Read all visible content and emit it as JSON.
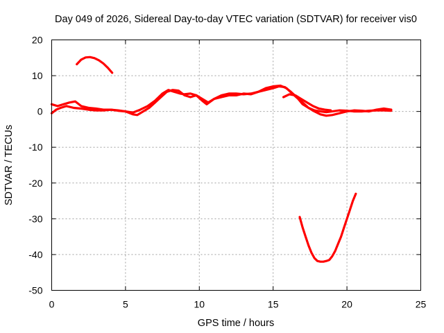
{
  "chart_data": {
    "type": "line",
    "title": "Day 049 of 2026, Sidereal Day-to-day VTEC variation (SDTVAR) for receiver vis0",
    "xlabel": "GPS time / hours",
    "ylabel": "SDTVAR / TECUs",
    "xlim": [
      0,
      25
    ],
    "ylim": [
      -50,
      20
    ],
    "xticks": [
      0,
      5,
      10,
      15,
      20,
      25
    ],
    "yticks": [
      -50,
      -40,
      -30,
      -20,
      -10,
      0,
      10,
      20
    ],
    "grid": true,
    "legend": "none",
    "color": "#ff0000",
    "series": [
      {
        "name": "arc-high-early",
        "x": [
          1.7,
          2.0,
          2.3,
          2.6,
          2.9,
          3.2,
          3.5,
          3.8,
          4.1
        ],
        "y": [
          13.2,
          14.5,
          15.1,
          15.2,
          14.9,
          14.3,
          13.4,
          12.2,
          10.8
        ]
      },
      {
        "name": "arc-baseline-lower",
        "x": [
          0.0,
          0.3,
          0.6,
          1.0,
          1.5,
          2.0,
          2.5,
          3.0,
          3.5,
          4.0,
          4.5,
          5.0,
          5.5,
          6.0,
          6.5,
          7.0,
          7.5,
          7.9,
          8.3,
          8.7,
          9.0,
          9.4,
          9.8,
          10.2,
          10.5,
          11.0,
          11.5,
          12.0,
          12.5,
          13.0,
          13.5,
          14.0,
          14.5,
          15.0,
          15.5,
          15.9,
          16.3,
          16.7,
          17.0,
          17.4,
          17.8,
          18.2,
          18.6,
          19.0,
          19.5,
          20.0,
          20.5,
          21.0,
          21.5,
          22.0,
          22.5,
          23.0
        ],
        "y": [
          -0.5,
          0.5,
          1.0,
          1.5,
          1.0,
          0.8,
          0.5,
          0.3,
          0.3,
          0.5,
          0.2,
          0.0,
          -0.3,
          0.5,
          1.5,
          3.0,
          5.0,
          6.0,
          5.5,
          5.0,
          4.8,
          5.0,
          4.5,
          3.0,
          2.0,
          3.5,
          4.5,
          5.0,
          5.0,
          4.8,
          5.0,
          5.5,
          6.5,
          7.0,
          7.2,
          6.5,
          5.0,
          3.5,
          2.0,
          1.0,
          0.3,
          0.0,
          -0.2,
          0.0,
          0.3,
          0.2,
          0.0,
          0.0,
          0.2,
          0.3,
          0.3,
          0.2
        ]
      },
      {
        "name": "arc-baseline-upper",
        "x": [
          0.0,
          0.4,
          0.8,
          1.2,
          1.6,
          2.0,
          2.5,
          3.0,
          3.5,
          4.0,
          4.5,
          5.0,
          5.5,
          5.8,
          6.2,
          6.6,
          7.0,
          7.4,
          7.8,
          8.2,
          8.6,
          9.0,
          9.4,
          9.8,
          10.2,
          10.6,
          11.0,
          11.5,
          12.0,
          12.5,
          13.0,
          13.5,
          14.0,
          14.5,
          15.0,
          15.4,
          15.8,
          16.2,
          16.6,
          17.0,
          17.4,
          17.8,
          18.2,
          18.6,
          19.0,
          19.5,
          20.0,
          20.5,
          21.0,
          21.5,
          22.0,
          22.5,
          23.0
        ],
        "y": [
          2.0,
          1.5,
          2.0,
          2.5,
          2.8,
          1.5,
          1.0,
          0.8,
          0.5,
          0.5,
          0.3,
          0.0,
          -0.8,
          -1.0,
          0.0,
          1.0,
          2.5,
          4.0,
          5.5,
          6.0,
          5.8,
          4.5,
          4.0,
          4.5,
          3.5,
          2.5,
          3.5,
          4.0,
          4.5,
          4.5,
          5.0,
          4.8,
          5.5,
          6.0,
          6.5,
          7.0,
          6.8,
          5.5,
          4.0,
          2.5,
          1.0,
          0.0,
          -0.8,
          -1.2,
          -1.0,
          -0.5,
          0.0,
          0.3,
          0.2,
          0.0,
          0.5,
          0.8,
          0.5
        ]
      },
      {
        "name": "arc-late-high",
        "x": [
          15.7,
          16.1,
          16.5,
          16.9,
          17.3,
          17.7,
          18.1,
          18.5,
          18.9
        ],
        "y": [
          4.0,
          4.8,
          4.5,
          3.5,
          2.5,
          1.5,
          0.8,
          0.5,
          0.3
        ]
      },
      {
        "name": "arc-low",
        "x": [
          16.8,
          17.0,
          17.2,
          17.4,
          17.6,
          17.8,
          18.0,
          18.2,
          18.4,
          18.6,
          18.8,
          19.0,
          19.2,
          19.4,
          19.6,
          19.8,
          20.0,
          20.2,
          20.4,
          20.6
        ],
        "y": [
          -29.5,
          -32.5,
          -35.0,
          -37.5,
          -39.5,
          -41.0,
          -41.8,
          -42.0,
          -42.0,
          -41.8,
          -41.5,
          -40.5,
          -39.0,
          -37.0,
          -35.0,
          -32.5,
          -30.0,
          -27.5,
          -25.0,
          -23.0
        ]
      }
    ]
  }
}
